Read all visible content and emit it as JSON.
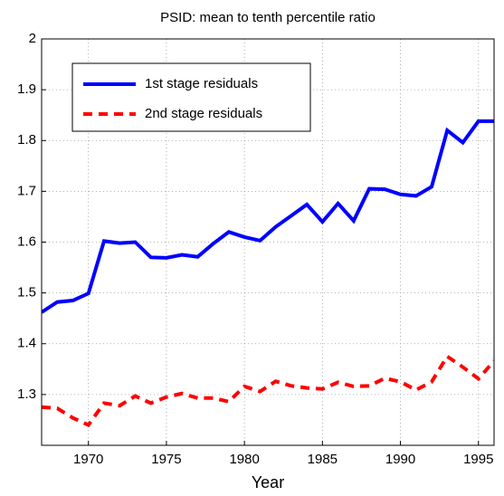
{
  "chart_data": {
    "type": "line",
    "title": "PSID: mean to tenth percentile ratio",
    "x_label": "Year",
    "x": [
      1967,
      1968,
      1969,
      1970,
      1971,
      1972,
      1973,
      1974,
      1975,
      1976,
      1977,
      1978,
      1979,
      1980,
      1981,
      1982,
      1983,
      1984,
      1985,
      1986,
      1987,
      1988,
      1989,
      1990,
      1991,
      1992,
      1993,
      1994,
      1995,
      1996
    ],
    "series": [
      {
        "name": "1st stage residuals",
        "color": "#0000ff",
        "dash": false,
        "values": [
          1.462,
          1.482,
          1.485,
          1.499,
          1.602,
          1.598,
          1.6,
          1.57,
          1.569,
          1.575,
          1.571,
          1.597,
          1.62,
          1.61,
          1.603,
          1.63,
          1.652,
          1.674,
          1.64,
          1.676,
          1.642,
          1.705,
          1.704,
          1.694,
          1.691,
          1.709,
          1.82,
          1.796,
          1.838,
          1.838
        ]
      },
      {
        "name": "2nd stage residuals",
        "color": "#ff0000",
        "dash": true,
        "values": [
          1.275,
          1.273,
          1.254,
          1.24,
          1.283,
          1.278,
          1.297,
          1.283,
          1.295,
          1.302,
          1.293,
          1.293,
          1.286,
          1.316,
          1.306,
          1.326,
          1.317,
          1.313,
          1.311,
          1.324,
          1.316,
          1.317,
          1.332,
          1.325,
          1.309,
          1.325,
          1.375,
          1.354,
          1.331,
          1.366
        ]
      }
    ],
    "xlim": [
      1967,
      1996
    ],
    "xticks": [
      1970,
      1975,
      1980,
      1985,
      1990,
      1995
    ],
    "ylim": [
      1.2,
      2
    ],
    "yticks": [
      1.3,
      1.4,
      1.5,
      1.6,
      1.7,
      1.8,
      1.9,
      2
    ],
    "grid": true
  }
}
